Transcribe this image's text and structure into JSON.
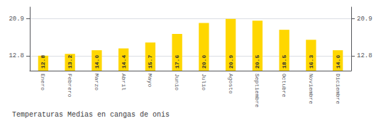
{
  "chart_data": {
    "type": "bar",
    "title": "Temperaturas Medias en cangas de onis",
    "categories": [
      "Enero",
      "Febrero",
      "Marzo",
      "Abril",
      "Mayo",
      "Junio",
      "Julio",
      "Agosto",
      "Septiembre",
      "Octubre",
      "Noviembre",
      "Diciembre"
    ],
    "values": [
      12.8,
      13.2,
      14.0,
      14.4,
      15.7,
      17.6,
      20.0,
      20.9,
      20.5,
      18.5,
      16.3,
      14.0
    ],
    "value_labels": [
      "12.8",
      "13.2",
      "14.0",
      "14.4",
      "15.7",
      "17.6",
      "20.0",
      "20.9",
      "20.5",
      "18.5",
      "16.3",
      "14.0"
    ],
    "color": "#FFD700",
    "ylim": [
      9.5,
      23.5
    ],
    "yticks": [
      12.8,
      20.9
    ],
    "y2lim": [
      9.5,
      23.5
    ],
    "y2ticks": [
      12.8,
      20.9
    ],
    "grid": true,
    "data_labels": true
  }
}
